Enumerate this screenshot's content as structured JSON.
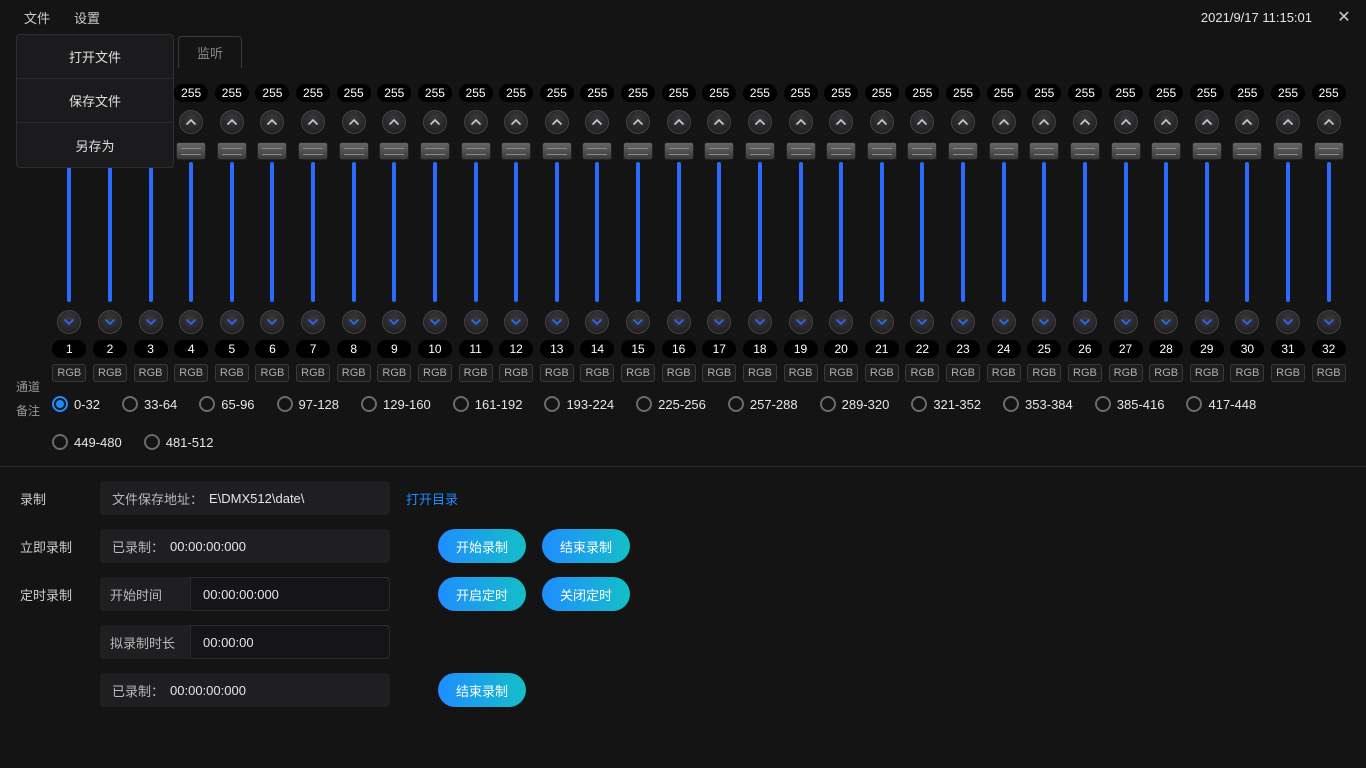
{
  "menubar": {
    "file": "文件",
    "settings": "设置",
    "timestamp": "2021/9/17 11:15:01"
  },
  "dropdown": {
    "open": "打开文件",
    "save": "保存文件",
    "save_as": "另存为"
  },
  "tabs": {
    "monitor": "监听"
  },
  "labels": {
    "channel": "通道",
    "note": "备注",
    "record": "录制",
    "record_now": "立即录制",
    "record_timed": "定时录制",
    "path_prefix": "文件保存地址：",
    "recorded_prefix": "已录制：",
    "start_time": "开始时间",
    "duration": "拟录制时长",
    "open_dir": "打开目录"
  },
  "buttons": {
    "start_record": "开始录制",
    "end_record": "结束录制",
    "start_timer": "开启定时",
    "close_timer": "关闭定时",
    "end_record2": "结束录制"
  },
  "values": {
    "save_path": "E\\DMX512\\date\\",
    "recorded": "00:00:00:000",
    "start_time": "00:00:00:000",
    "duration": "00:00:00",
    "recorded2": "00:00:00:000"
  },
  "channel_count": 32,
  "channel_value": 255,
  "channel_note": "RGB",
  "ranges": [
    "0-32",
    "33-64",
    "65-96",
    "97-128",
    "129-160",
    "161-192",
    "193-224",
    "225-256",
    "257-288",
    "289-320",
    "321-352",
    "353-384",
    "385-416",
    "417-448",
    "449-480",
    "481-512"
  ],
  "range_selected": 0,
  "colors": {
    "bg": "#141415",
    "accent_blue": "#1f8dff",
    "slider_blue": "#2a6aff",
    "btn_grad_start": "#1f8dff",
    "btn_grad_end": "#14bfc7"
  }
}
